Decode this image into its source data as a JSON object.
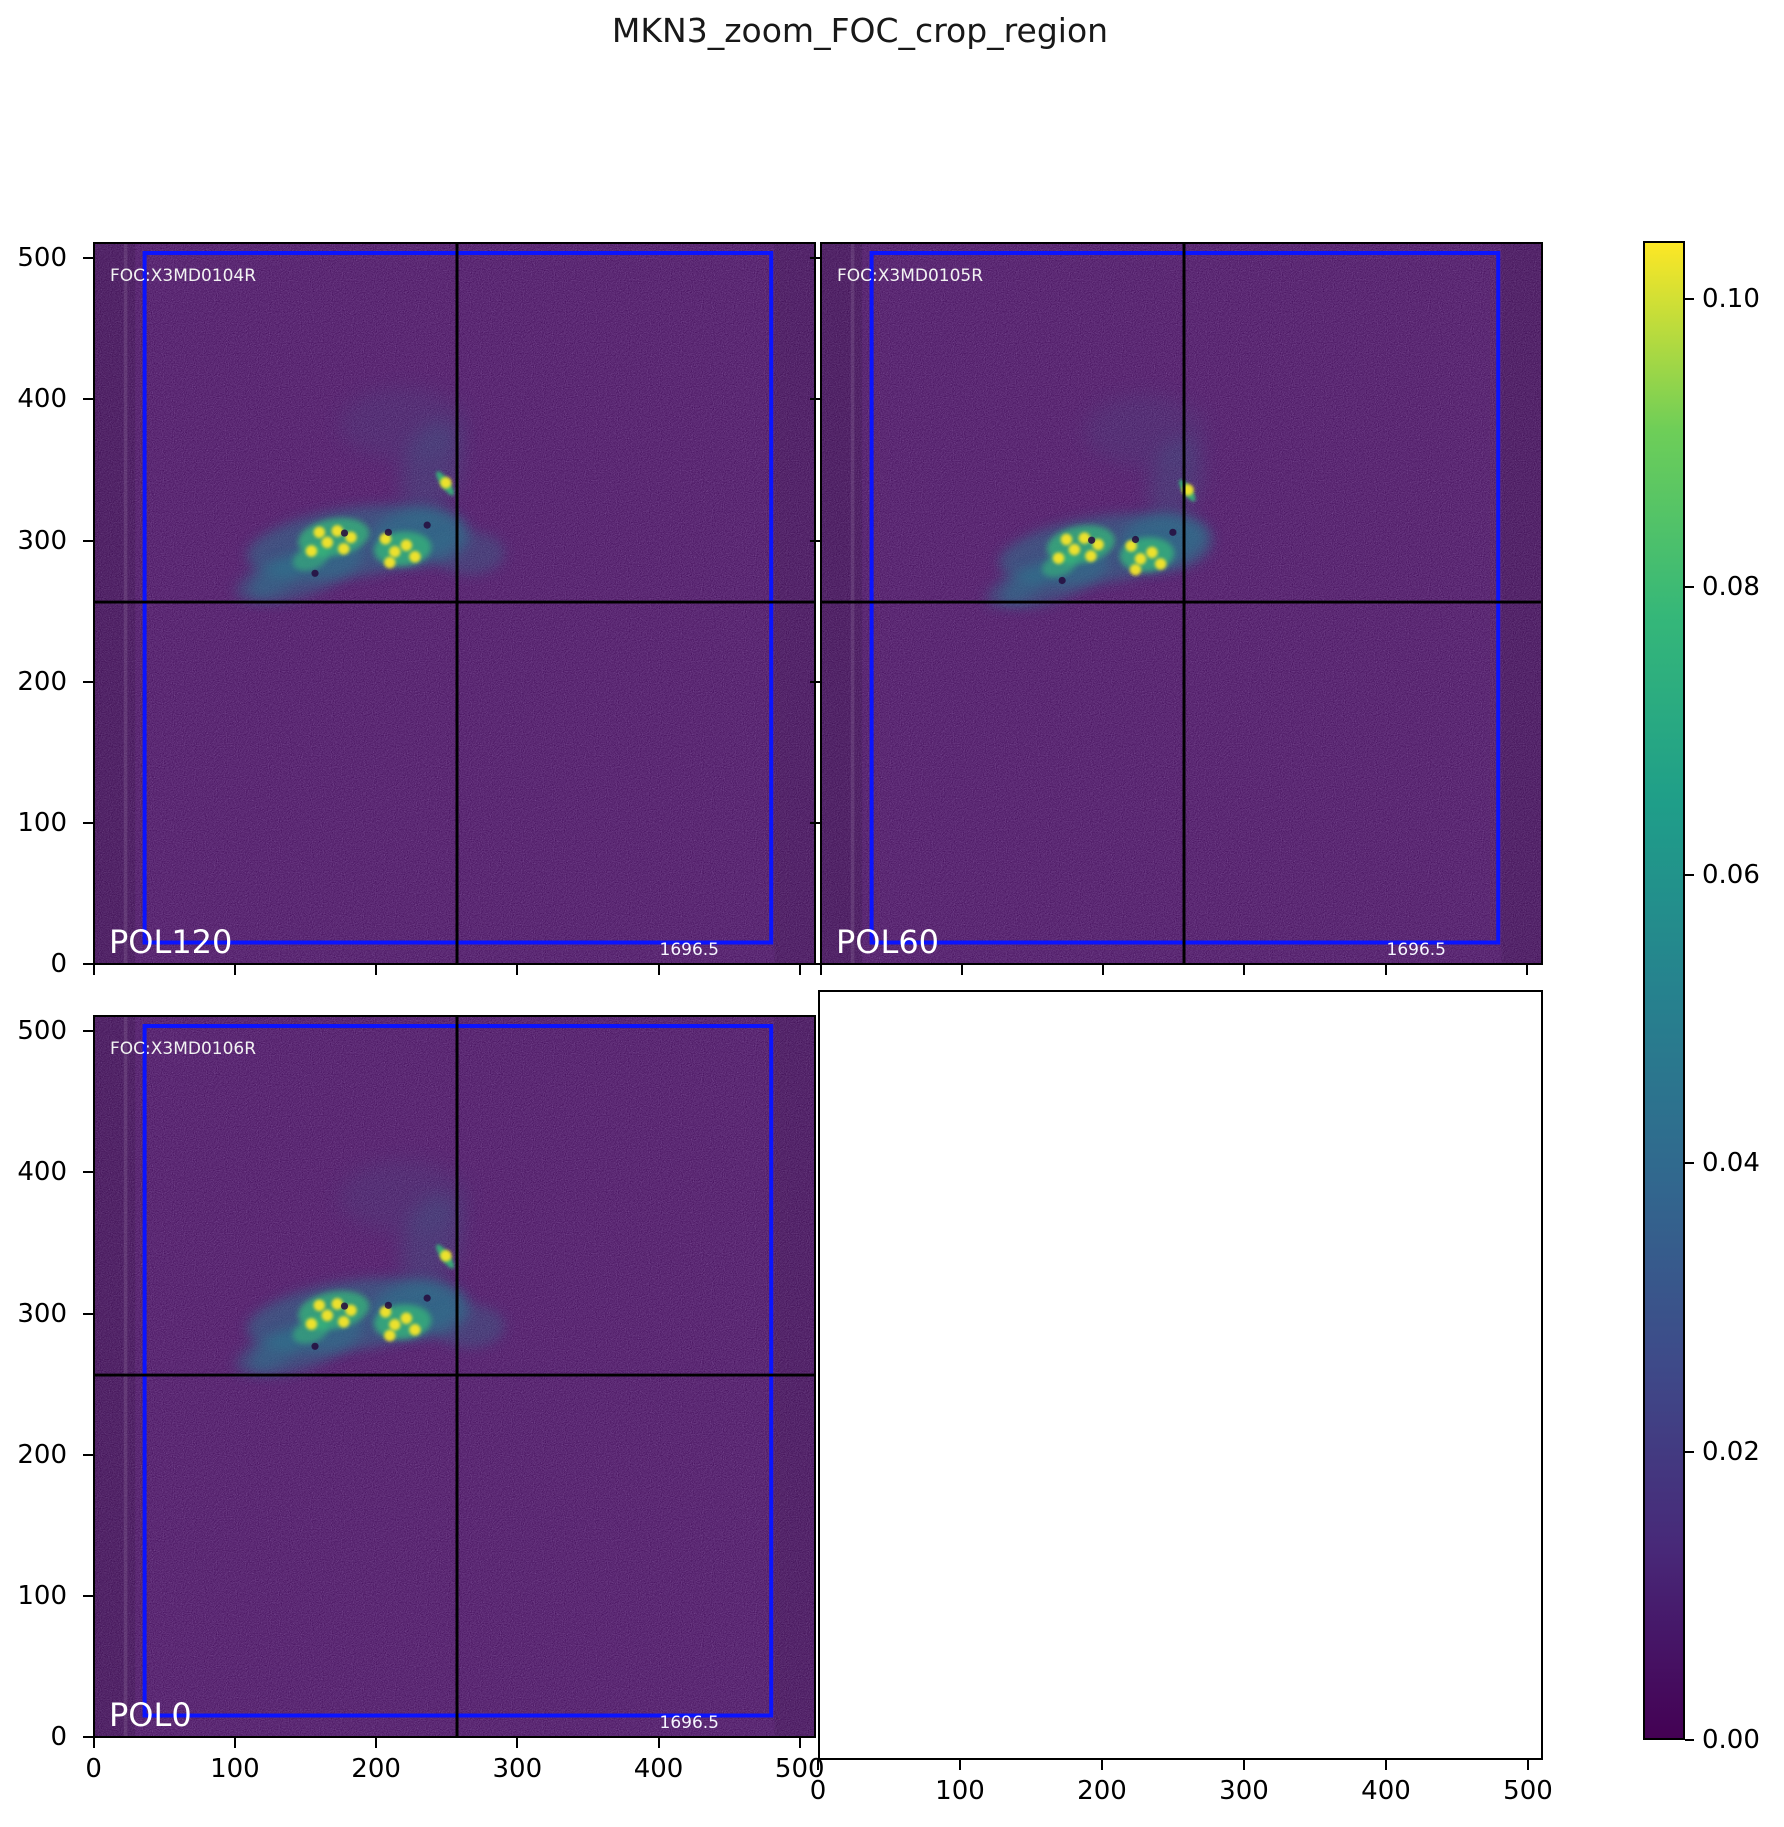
{
  "title": "MKN3_zoom_FOC_crop_region",
  "colors": {
    "background_value_color": "#430d5a",
    "crop_box_color": "#0a14ff",
    "crosshair_color": "#000000",
    "annotation_text_color": "#ffffff",
    "colormap": "viridis"
  },
  "axes": {
    "x_tick_labels": [
      "0",
      "100",
      "200",
      "300",
      "400",
      "500"
    ],
    "y_tick_labels": [
      "0",
      "100",
      "200",
      "300",
      "400",
      "500"
    ]
  },
  "colorbar": {
    "tick_labels": [
      "0.10",
      "0.08",
      "0.06",
      "0.04",
      "0.02",
      "0.00"
    ],
    "tick_values": [
      0.1,
      0.08,
      0.06,
      0.04,
      0.02,
      0.0
    ],
    "vmin": 0.0,
    "vmax": 0.104
  },
  "panels": [
    {
      "id": "pol120",
      "slot": "top-left",
      "label": "POL120",
      "dataset_label": "FOC:X3MD0104R",
      "corner_value": "1696.5",
      "blob_set": "A",
      "empty": false
    },
    {
      "id": "pol60",
      "slot": "top-right",
      "label": "POL60",
      "dataset_label": "FOC:X3MD0105R",
      "corner_value": "1696.5",
      "blob_set": "B",
      "empty": false
    },
    {
      "id": "pol0",
      "slot": "bottom-left",
      "label": "POL0",
      "dataset_label": "FOC:X3MD0106R",
      "corner_value": "1696.5",
      "blob_set": "A",
      "empty": false
    },
    {
      "id": "empty",
      "slot": "bottom-right",
      "label": "",
      "dataset_label": "",
      "corner_value": "",
      "blob_set": null,
      "empty": true
    }
  ],
  "blob_sets": {
    "A": {
      "haze": [
        [
          0.36,
          0.415,
          0.15,
          0.048,
          -8,
          0.5,
          9
        ],
        [
          0.295,
          0.455,
          0.085,
          0.032,
          -22,
          0.45,
          8
        ],
        [
          0.452,
          0.408,
          0.07,
          0.04,
          -5,
          0.5,
          8
        ],
        [
          0.468,
          0.315,
          0.04,
          0.07,
          15,
          0.22,
          11
        ],
        [
          0.43,
          0.25,
          0.09,
          0.05,
          0,
          0.1,
          13
        ],
        [
          0.24,
          0.468,
          0.048,
          0.022,
          -25,
          0.38,
          7
        ],
        [
          0.52,
          0.43,
          0.05,
          0.03,
          0,
          0.3,
          8
        ]
      ],
      "green": [
        [
          0.332,
          0.408,
          0.05,
          0.026,
          -10,
          0.75,
          4
        ],
        [
          0.428,
          0.424,
          0.04,
          0.024,
          -5,
          0.75,
          4
        ],
        [
          0.3,
          0.437,
          0.026,
          0.016,
          -20,
          0.6,
          4
        ],
        [
          0.487,
          0.333,
          0.02,
          0.006,
          55,
          0.9,
          2
        ]
      ],
      "bright": [
        [
          0.312,
          0.401
        ],
        [
          0.323,
          0.415
        ],
        [
          0.337,
          0.399
        ],
        [
          0.301,
          0.427
        ],
        [
          0.346,
          0.424
        ],
        [
          0.356,
          0.408
        ],
        [
          0.404,
          0.41
        ],
        [
          0.417,
          0.428
        ],
        [
          0.433,
          0.419
        ],
        [
          0.445,
          0.435
        ],
        [
          0.41,
          0.443
        ],
        [
          0.488,
          0.332
        ]
      ],
      "dark": [
        [
          0.347,
          0.402
        ],
        [
          0.462,
          0.391
        ],
        [
          0.306,
          0.458
        ],
        [
          0.408,
          0.401
        ]
      ]
    },
    "B": {
      "haze": [
        [
          0.39,
          0.425,
          0.145,
          0.046,
          -8,
          0.5,
          9
        ],
        [
          0.325,
          0.465,
          0.08,
          0.03,
          -22,
          0.45,
          8
        ],
        [
          0.478,
          0.415,
          0.065,
          0.04,
          -5,
          0.5,
          8
        ],
        [
          0.492,
          0.33,
          0.035,
          0.06,
          15,
          0.22,
          11
        ],
        [
          0.45,
          0.26,
          0.085,
          0.05,
          0,
          0.1,
          13
        ],
        [
          0.27,
          0.478,
          0.045,
          0.02,
          -25,
          0.38,
          7
        ]
      ],
      "green": [
        [
          0.36,
          0.418,
          0.048,
          0.026,
          -10,
          0.75,
          4
        ],
        [
          0.452,
          0.432,
          0.038,
          0.024,
          -5,
          0.75,
          4
        ],
        [
          0.33,
          0.447,
          0.025,
          0.015,
          -20,
          0.6,
          4
        ],
        [
          0.508,
          0.343,
          0.018,
          0.006,
          55,
          0.9,
          2
        ]
      ],
      "bright": [
        [
          0.34,
          0.411
        ],
        [
          0.351,
          0.425
        ],
        [
          0.365,
          0.409
        ],
        [
          0.329,
          0.437
        ],
        [
          0.374,
          0.434
        ],
        [
          0.384,
          0.418
        ],
        [
          0.43,
          0.42
        ],
        [
          0.443,
          0.438
        ],
        [
          0.459,
          0.429
        ],
        [
          0.471,
          0.445
        ],
        [
          0.436,
          0.453
        ],
        [
          0.509,
          0.342
        ]
      ],
      "dark": [
        [
          0.375,
          0.412
        ],
        [
          0.488,
          0.401
        ],
        [
          0.334,
          0.468
        ],
        [
          0.436,
          0.411
        ]
      ]
    }
  },
  "chart_data": {
    "type": "heatmap",
    "title": "MKN3_zoom_FOC_crop_region",
    "colormap": "viridis",
    "colorbar": {
      "tick_values": [
        0.1,
        0.08,
        0.06,
        0.04,
        0.02,
        0.0
      ],
      "vmin": 0.0,
      "vmax": 0.104,
      "position": "right"
    },
    "x_ticks": [
      0,
      100,
      200,
      300,
      400,
      500
    ],
    "y_ticks": [
      0,
      100,
      200,
      300,
      400,
      500
    ],
    "panels": [
      {
        "position": "top-left",
        "label": "POL120",
        "dataset": "FOC:X3MD0104R",
        "annotation_value": 1696.5,
        "x_range": [
          0,
          512
        ],
        "y_range": [
          0,
          512
        ],
        "crop_region_box": {
          "x0": 35,
          "y0": 14,
          "x1": 481,
          "y1": 505
        },
        "crosshair": {
          "x": 256,
          "y": 256
        },
        "emission_region": {
          "x_extent": [
            120,
            262
          ],
          "y_extent": [
            273,
            348
          ],
          "peak_value_approx": 0.104
        }
      },
      {
        "position": "top-right",
        "label": "POL60",
        "dataset": "FOC:X3MD0105R",
        "annotation_value": 1696.5,
        "x_range": [
          0,
          512
        ],
        "y_range": [
          0,
          512
        ],
        "crop_region_box": {
          "x0": 35,
          "y0": 14,
          "x1": 481,
          "y1": 505
        },
        "crosshair": {
          "x": 256,
          "y": 256
        },
        "emission_region": {
          "x_extent": [
            135,
            265
          ],
          "y_extent": [
            268,
            342
          ],
          "peak_value_approx": 0.104
        }
      },
      {
        "position": "bottom-left",
        "label": "POL0",
        "dataset": "FOC:X3MD0106R",
        "annotation_value": 1696.5,
        "x_range": [
          0,
          512
        ],
        "y_range": [
          0,
          512
        ],
        "crop_region_box": {
          "x0": 35,
          "y0": 14,
          "x1": 481,
          "y1": 505
        },
        "crosshair": {
          "x": 256,
          "y": 256
        },
        "emission_region": {
          "x_extent": [
            120,
            262
          ],
          "y_extent": [
            273,
            348
          ],
          "peak_value_approx": 0.104
        }
      },
      {
        "position": "bottom-right",
        "label": "",
        "dataset": "",
        "empty": true,
        "x_range": [
          0,
          510
        ],
        "y_range": [
          0,
          500
        ]
      }
    ]
  }
}
